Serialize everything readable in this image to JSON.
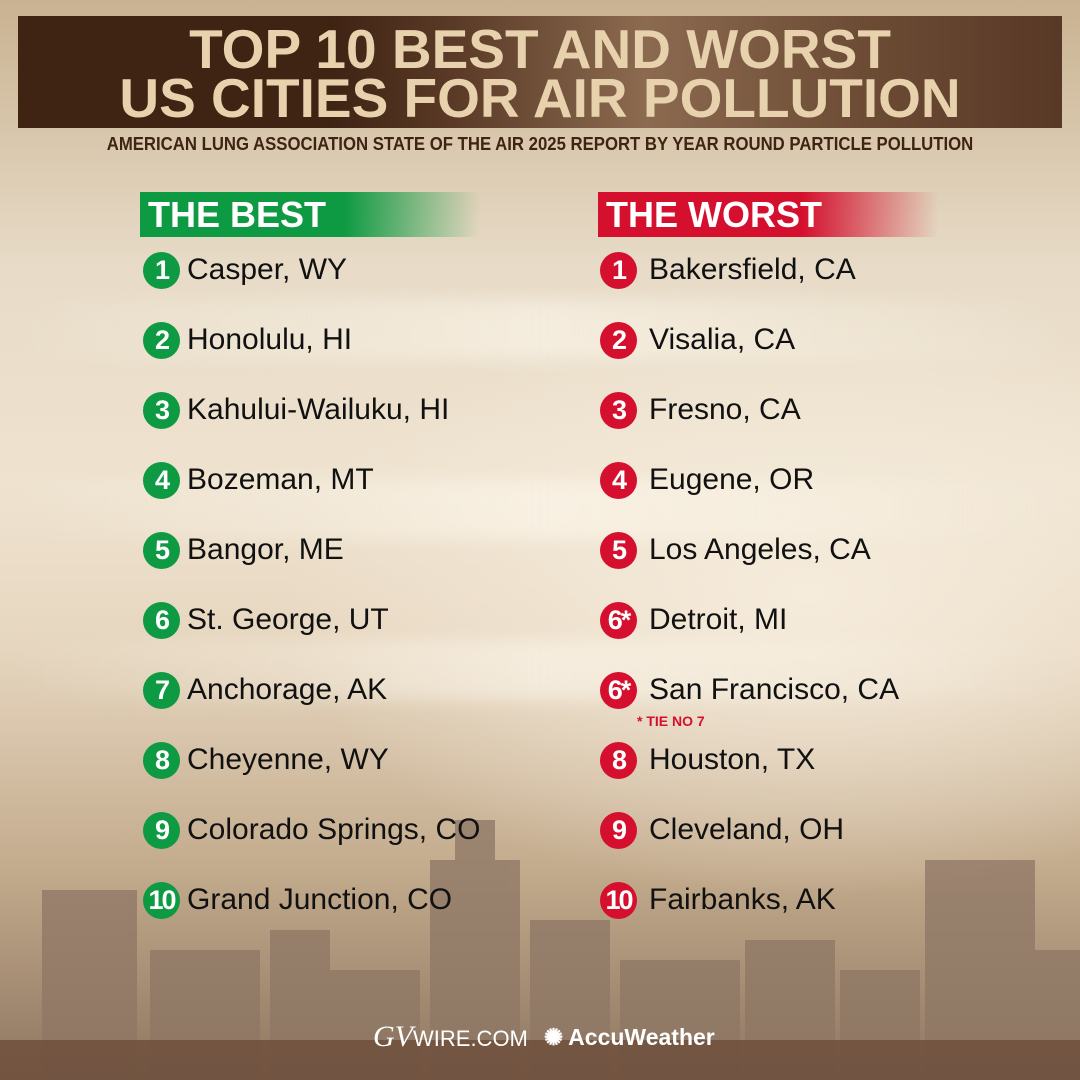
{
  "header": {
    "title_line1": "TOP 10 BEST AND WORST",
    "title_line2": "US CITIES FOR AIR POLLUTION",
    "subtitle": "AMERICAN LUNG ASSOCIATION STATE OF THE AIR 2025 REPORT BY YEAR ROUND PARTICLE POLLUTION"
  },
  "best": {
    "heading": "THE BEST",
    "color": "#0e9a42",
    "items": [
      {
        "rank": "1",
        "city": "Casper, WY"
      },
      {
        "rank": "2",
        "city": "Honolulu, HI"
      },
      {
        "rank": "3",
        "city": "Kahului-Wailuku, HI"
      },
      {
        "rank": "4",
        "city": "Bozeman, MT"
      },
      {
        "rank": "5",
        "city": "Bangor, ME"
      },
      {
        "rank": "6",
        "city": "St. George, UT"
      },
      {
        "rank": "7",
        "city": "Anchorage, AK"
      },
      {
        "rank": "8",
        "city": "Cheyenne, WY"
      },
      {
        "rank": "9",
        "city": "Colorado Springs, CO"
      },
      {
        "rank": "10",
        "city": "Grand Junction, CO"
      }
    ]
  },
  "worst": {
    "heading": "THE WORST",
    "color": "#d4102e",
    "items": [
      {
        "rank": "1",
        "city": "Bakersfield, CA"
      },
      {
        "rank": "2",
        "city": "Visalia, CA"
      },
      {
        "rank": "3",
        "city": "Fresno, CA"
      },
      {
        "rank": "4",
        "city": "Eugene, OR"
      },
      {
        "rank": "5",
        "city": "Los Angeles, CA"
      },
      {
        "rank": "6*",
        "city": "Detroit, MI"
      },
      {
        "rank": "6*",
        "city": "San Francisco, CA"
      },
      {
        "rank": "8",
        "city": "Houston, TX"
      },
      {
        "rank": "9",
        "city": "Cleveland, OH"
      },
      {
        "rank": "10",
        "city": "Fairbanks, AK"
      }
    ],
    "footnote": "* TIE NO 7"
  },
  "logos": {
    "gvwire_main": "GV",
    "gvwire_rest": "WIRE.COM",
    "accuweather": "AccuWeather"
  }
}
